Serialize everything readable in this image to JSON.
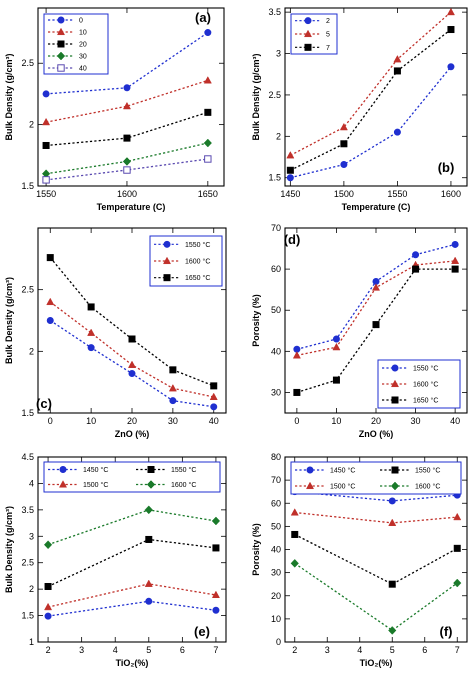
{
  "chart_data": [
    {
      "panel": "(a)",
      "type": "line",
      "xlabel": "Temperature (C)",
      "ylabel": "Bulk Density (g/cm³)",
      "xlim": [
        1545,
        1660
      ],
      "ylim": [
        1.5,
        2.95
      ],
      "xticks": [
        1550,
        1600,
        1650
      ],
      "yticks": [
        1.5,
        2,
        2.5
      ],
      "legend_position": "top-left",
      "legend_columns": 1,
      "series": [
        {
          "name": "0",
          "color": "#1f2fd0",
          "marker": "circle",
          "x": [
            1550,
            1600,
            1650
          ],
          "y": [
            2.25,
            2.3,
            2.75
          ]
        },
        {
          "name": "10",
          "color": "#c0302a",
          "marker": "triangle",
          "x": [
            1550,
            1600,
            1650
          ],
          "y": [
            2.02,
            2.15,
            2.36
          ]
        },
        {
          "name": "20",
          "color": "#000000",
          "marker": "square",
          "x": [
            1550,
            1600,
            1650
          ],
          "y": [
            1.83,
            1.89,
            2.1
          ]
        },
        {
          "name": "30",
          "color": "#1a7a2a",
          "marker": "diamond",
          "x": [
            1550,
            1600,
            1650
          ],
          "y": [
            1.6,
            1.7,
            1.85
          ]
        },
        {
          "name": "40",
          "color": "#5a4ab0",
          "marker": "open-square",
          "x": [
            1550,
            1600,
            1650
          ],
          "y": [
            1.55,
            1.63,
            1.72
          ]
        }
      ]
    },
    {
      "panel": "(b)",
      "type": "line",
      "xlabel": "Temperature (C)",
      "ylabel": "Bulk Density (g/cm³)",
      "xlim": [
        1445,
        1615
      ],
      "ylim": [
        1.4,
        3.55
      ],
      "xticks": [
        1450,
        1500,
        1550,
        1600
      ],
      "yticks": [
        1.5,
        2,
        2.5,
        3,
        3.5
      ],
      "legend_position": "top-left",
      "legend_columns": 1,
      "series": [
        {
          "name": "2",
          "color": "#1f2fd0",
          "marker": "circle",
          "x": [
            1450,
            1500,
            1550,
            1600
          ],
          "y": [
            1.5,
            1.66,
            2.05,
            2.84
          ]
        },
        {
          "name": "5",
          "color": "#c0302a",
          "marker": "triangle",
          "x": [
            1450,
            1500,
            1550,
            1600
          ],
          "y": [
            1.77,
            2.11,
            2.93,
            3.5
          ]
        },
        {
          "name": "7",
          "color": "#000000",
          "marker": "square",
          "x": [
            1450,
            1500,
            1550,
            1600
          ],
          "y": [
            1.59,
            1.91,
            2.79,
            3.29
          ]
        }
      ]
    },
    {
      "panel": "(c)",
      "type": "line",
      "xlabel": "ZnO (%)",
      "ylabel": "Bulk Density (g/cm³)",
      "xlim": [
        -3,
        43
      ],
      "ylim": [
        1.5,
        3.0
      ],
      "xticks": [
        0,
        10,
        20,
        30,
        40
      ],
      "yticks": [
        1.5,
        2,
        2.5
      ],
      "legend_position": "top-right",
      "legend_columns": 1,
      "series": [
        {
          "name": "1550 °C",
          "color": "#1f2fd0",
          "marker": "circle",
          "x": [
            0,
            10,
            20,
            30,
            40
          ],
          "y": [
            2.25,
            2.03,
            1.82,
            1.6,
            1.55
          ]
        },
        {
          "name": "1600 °C",
          "color": "#c0302a",
          "marker": "triangle",
          "x": [
            0,
            10,
            20,
            30,
            40
          ],
          "y": [
            2.4,
            2.15,
            1.89,
            1.7,
            1.63
          ]
        },
        {
          "name": "1650 °C",
          "color": "#000000",
          "marker": "square",
          "x": [
            0,
            10,
            20,
            30,
            40
          ],
          "y": [
            2.76,
            2.36,
            2.1,
            1.85,
            1.72
          ]
        }
      ]
    },
    {
      "panel": "(d)",
      "type": "line",
      "xlabel": "ZnO (%)",
      "ylabel": "Porosity (%)",
      "xlim": [
        -3,
        43
      ],
      "ylim": [
        25,
        70
      ],
      "xticks": [
        0,
        10,
        20,
        30,
        40
      ],
      "yticks": [
        30,
        40,
        50,
        60,
        70
      ],
      "legend_position": "bottom-right",
      "legend_columns": 1,
      "series": [
        {
          "name": "1550 °C",
          "color": "#1f2fd0",
          "marker": "circle",
          "x": [
            0,
            10,
            20,
            30,
            40
          ],
          "y": [
            40.5,
            43,
            57,
            63.5,
            66
          ]
        },
        {
          "name": "1600 °C",
          "color": "#c0302a",
          "marker": "triangle",
          "x": [
            0,
            10,
            20,
            30,
            40
          ],
          "y": [
            39,
            41,
            55.5,
            61,
            62
          ]
        },
        {
          "name": "1650 °C",
          "color": "#000000",
          "marker": "square",
          "x": [
            0,
            10,
            20,
            30,
            40
          ],
          "y": [
            30,
            33,
            46.5,
            60,
            60
          ]
        }
      ]
    },
    {
      "panel": "(e)",
      "type": "line",
      "xlabel": "TiO₂(%)",
      "ylabel": "Bulk Density (g/cm³)",
      "xlim": [
        1.7,
        7.3
      ],
      "ylim": [
        1.0,
        4.5
      ],
      "xticks": [
        2,
        3,
        4,
        5,
        6,
        7
      ],
      "yticks": [
        1,
        1.5,
        2,
        2.5,
        3,
        3.5,
        4,
        4.5
      ],
      "legend_position": "top",
      "legend_columns": 2,
      "series": [
        {
          "name": "1450 °C",
          "color": "#1f2fd0",
          "marker": "circle",
          "x": [
            2,
            5,
            7
          ],
          "y": [
            1.49,
            1.77,
            1.6
          ]
        },
        {
          "name": "1550 °C",
          "color": "#000000",
          "marker": "square",
          "x": [
            2,
            5,
            7
          ],
          "y": [
            2.05,
            2.94,
            2.78
          ]
        },
        {
          "name": "1500 °C",
          "color": "#c0302a",
          "marker": "triangle",
          "x": [
            2,
            5,
            7
          ],
          "y": [
            1.66,
            2.1,
            1.89
          ]
        },
        {
          "name": "1600 °C",
          "color": "#1a7a2a",
          "marker": "diamond",
          "x": [
            2,
            5,
            7
          ],
          "y": [
            2.84,
            3.5,
            3.29
          ]
        }
      ]
    },
    {
      "panel": "(f)",
      "type": "line",
      "xlabel": "TiO₂(%)",
      "ylabel": "Porosity (%)",
      "xlim": [
        1.7,
        7.3
      ],
      "ylim": [
        0,
        80
      ],
      "xticks": [
        2,
        3,
        4,
        5,
        6,
        7
      ],
      "yticks": [
        0,
        10,
        20,
        30,
        40,
        50,
        60,
        70,
        80
      ],
      "legend_position": "top",
      "legend_columns": 2,
      "series": [
        {
          "name": "1450 °C",
          "color": "#1f2fd0",
          "marker": "circle",
          "x": [
            2,
            5,
            7
          ],
          "y": [
            65,
            61,
            63.5
          ]
        },
        {
          "name": "1550 °C",
          "color": "#000000",
          "marker": "square",
          "x": [
            2,
            5,
            7
          ],
          "y": [
            46.5,
            25,
            40.5
          ]
        },
        {
          "name": "1500 °C",
          "color": "#c0302a",
          "marker": "triangle",
          "x": [
            2,
            5,
            7
          ],
          "y": [
            56,
            51.5,
            54
          ]
        },
        {
          "name": "1600 °C",
          "color": "#1a7a2a",
          "marker": "diamond",
          "x": [
            2,
            5,
            7
          ],
          "y": [
            34,
            5,
            25.5
          ]
        }
      ]
    }
  ]
}
